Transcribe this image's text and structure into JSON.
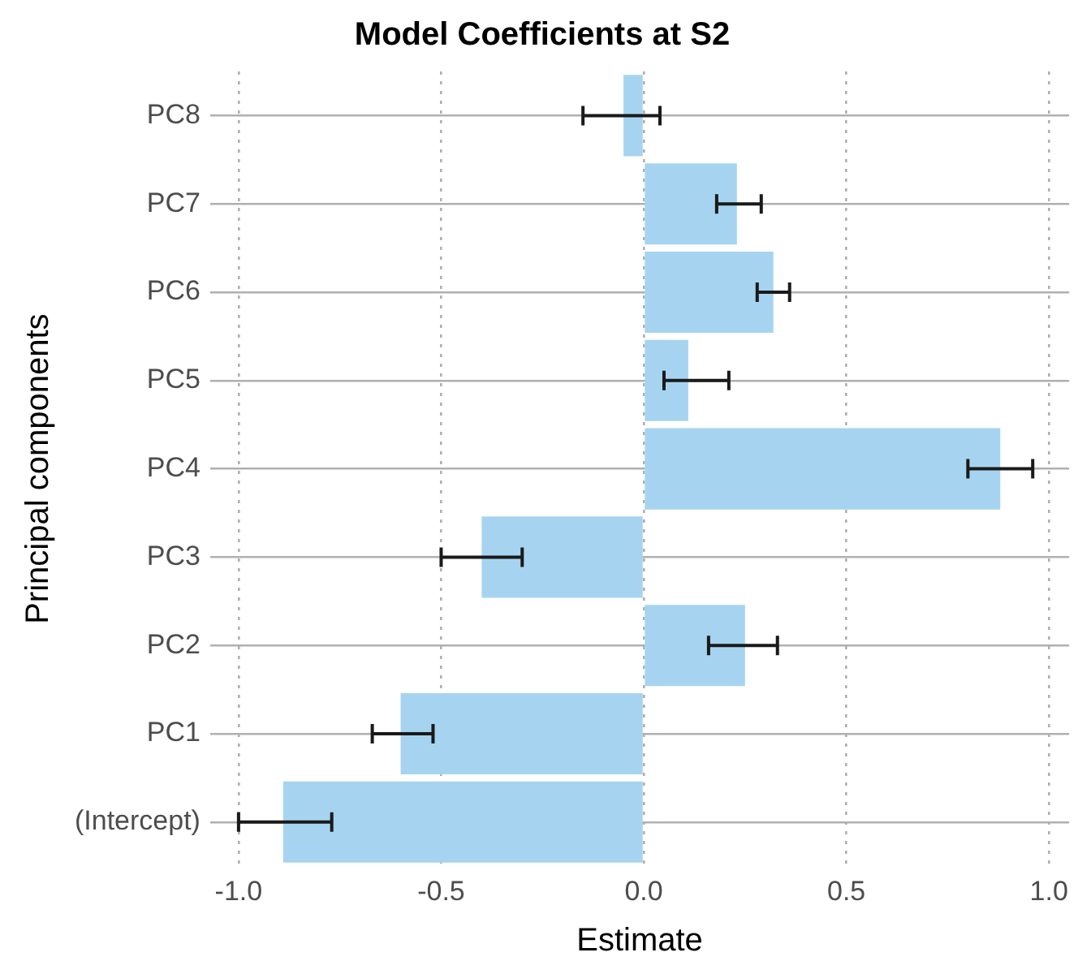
{
  "chart_data": {
    "type": "bar",
    "orientation": "horizontal",
    "title": "Model Coefficients at S2",
    "xlabel": "Estimate",
    "ylabel": "Principal components",
    "categories": [
      "PC8",
      "PC7",
      "PC6",
      "PC5",
      "PC4",
      "PC3",
      "PC2",
      "PC1",
      "(Intercept)"
    ],
    "values": [
      -0.05,
      0.23,
      0.32,
      0.11,
      0.88,
      -0.4,
      0.25,
      -0.6,
      -0.89
    ],
    "errors": [
      [
        -0.15,
        0.04
      ],
      [
        0.18,
        0.29
      ],
      [
        0.28,
        0.36
      ],
      [
        0.05,
        0.21
      ],
      [
        0.8,
        0.96
      ],
      [
        -0.5,
        -0.3
      ],
      [
        0.16,
        0.33
      ],
      [
        -0.67,
        -0.52
      ],
      [
        -1.0,
        -0.77
      ]
    ],
    "color": "#a6d4f0",
    "xlim": [
      -1.07,
      1.05
    ],
    "xticks": [
      {
        "value": -1,
        "label": "-1.0"
      },
      {
        "value": -0.5,
        "label": "-0.5"
      },
      {
        "value": 0,
        "label": "0.0"
      },
      {
        "value": 0.5,
        "label": "0.5"
      },
      {
        "value": 1,
        "label": "1.0"
      }
    ],
    "grid": true,
    "legend": false
  }
}
